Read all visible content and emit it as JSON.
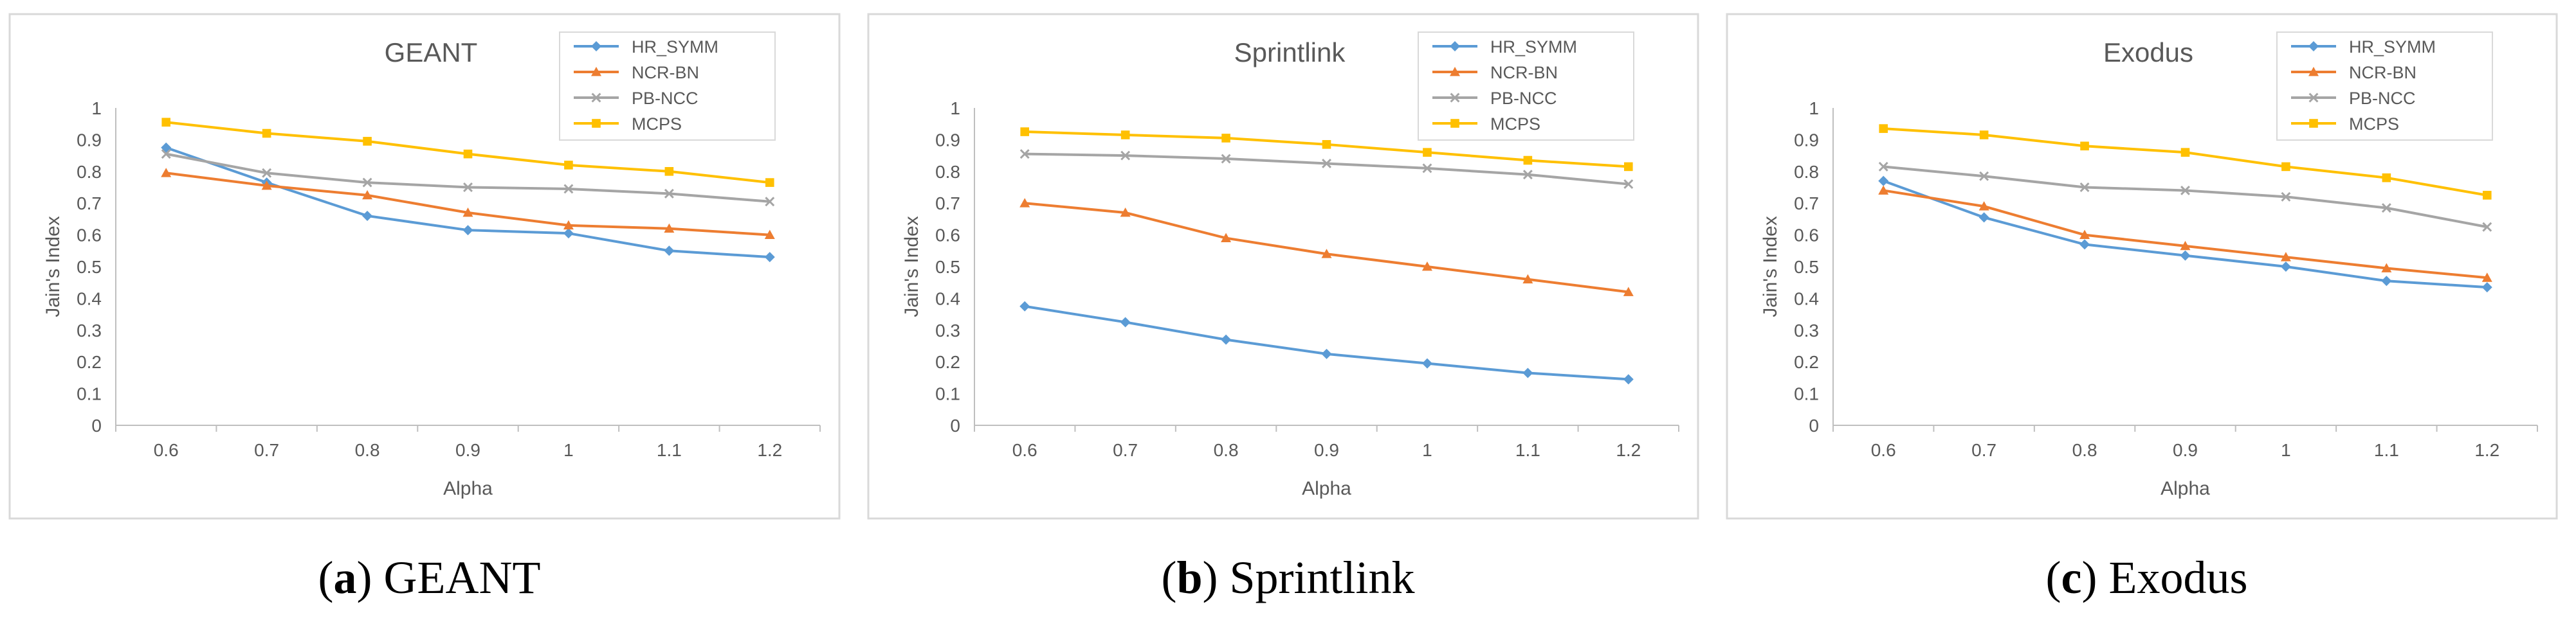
{
  "chart_data": [
    {
      "type": "line",
      "title": "GEANT",
      "xlabel": "Alpha",
      "ylabel": "Jain's Index",
      "categories": [
        "0.6",
        "0.7",
        "0.8",
        "0.9",
        "1",
        "1.1",
        "1.2"
      ],
      "y_ticks": [
        "0",
        "0.1",
        "0.2",
        "0.3",
        "0.4",
        "0.5",
        "0.6",
        "0.7",
        "0.8",
        "0.9",
        "1"
      ],
      "ylim": [
        0,
        1
      ],
      "legend_position": "top-right",
      "series": [
        {
          "name": "HR_SYMM",
          "color": "#5b9bd5",
          "marker": "diamond",
          "values": [
            0.875,
            0.765,
            0.66,
            0.615,
            0.605,
            0.55,
            0.53
          ]
        },
        {
          "name": "NCR-BN",
          "color": "#ed7d31",
          "marker": "triangle",
          "values": [
            0.795,
            0.755,
            0.725,
            0.67,
            0.63,
            0.62,
            0.6
          ]
        },
        {
          "name": "PB-NCC",
          "color": "#a5a5a5",
          "marker": "x",
          "values": [
            0.855,
            0.795,
            0.765,
            0.75,
            0.745,
            0.73,
            0.705
          ]
        },
        {
          "name": "MCPS",
          "color": "#ffc000",
          "marker": "square",
          "values": [
            0.955,
            0.92,
            0.895,
            0.855,
            0.82,
            0.8,
            0.765
          ]
        }
      ]
    },
    {
      "type": "line",
      "title": "Sprintlink",
      "xlabel": "Alpha",
      "ylabel": "Jain's Index",
      "categories": [
        "0.6",
        "0.7",
        "0.8",
        "0.9",
        "1",
        "1.1",
        "1.2"
      ],
      "y_ticks": [
        "0",
        "0.1",
        "0.2",
        "0.3",
        "0.4",
        "0.5",
        "0.6",
        "0.7",
        "0.8",
        "0.9",
        "1"
      ],
      "ylim": [
        0,
        1
      ],
      "legend_position": "top-right",
      "series": [
        {
          "name": "HR_SYMM",
          "color": "#5b9bd5",
          "marker": "diamond",
          "values": [
            0.375,
            0.325,
            0.27,
            0.225,
            0.195,
            0.165,
            0.145
          ]
        },
        {
          "name": "NCR-BN",
          "color": "#ed7d31",
          "marker": "triangle",
          "values": [
            0.7,
            0.67,
            0.59,
            0.54,
            0.5,
            0.46,
            0.42
          ]
        },
        {
          "name": "PB-NCC",
          "color": "#a5a5a5",
          "marker": "x",
          "values": [
            0.855,
            0.85,
            0.84,
            0.825,
            0.81,
            0.79,
            0.76
          ]
        },
        {
          "name": "MCPS",
          "color": "#ffc000",
          "marker": "square",
          "values": [
            0.925,
            0.915,
            0.905,
            0.885,
            0.86,
            0.835,
            0.815
          ]
        }
      ]
    },
    {
      "type": "line",
      "title": "Exodus",
      "xlabel": "Alpha",
      "ylabel": "Jain's Index",
      "categories": [
        "0.6",
        "0.7",
        "0.8",
        "0.9",
        "1",
        "1.1",
        "1.2"
      ],
      "y_ticks": [
        "0",
        "0.1",
        "0.2",
        "0.3",
        "0.4",
        "0.5",
        "0.6",
        "0.7",
        "0.8",
        "0.9",
        "1"
      ],
      "ylim": [
        0,
        1
      ],
      "legend_position": "top-right",
      "series": [
        {
          "name": "HR_SYMM",
          "color": "#5b9bd5",
          "marker": "diamond",
          "values": [
            0.77,
            0.655,
            0.57,
            0.535,
            0.5,
            0.455,
            0.435
          ]
        },
        {
          "name": "NCR-BN",
          "color": "#ed7d31",
          "marker": "triangle",
          "values": [
            0.74,
            0.69,
            0.6,
            0.565,
            0.53,
            0.495,
            0.465
          ]
        },
        {
          "name": "PB-NCC",
          "color": "#a5a5a5",
          "marker": "x",
          "values": [
            0.815,
            0.785,
            0.75,
            0.74,
            0.72,
            0.685,
            0.625
          ]
        },
        {
          "name": "MCPS",
          "color": "#ffc000",
          "marker": "square",
          "values": [
            0.935,
            0.915,
            0.88,
            0.86,
            0.815,
            0.78,
            0.725
          ]
        }
      ]
    }
  ],
  "captions": [
    {
      "letter": "a",
      "text": "GEANT"
    },
    {
      "letter": "b",
      "text": "Sprintlink"
    },
    {
      "letter": "c",
      "text": "Exodus"
    }
  ]
}
